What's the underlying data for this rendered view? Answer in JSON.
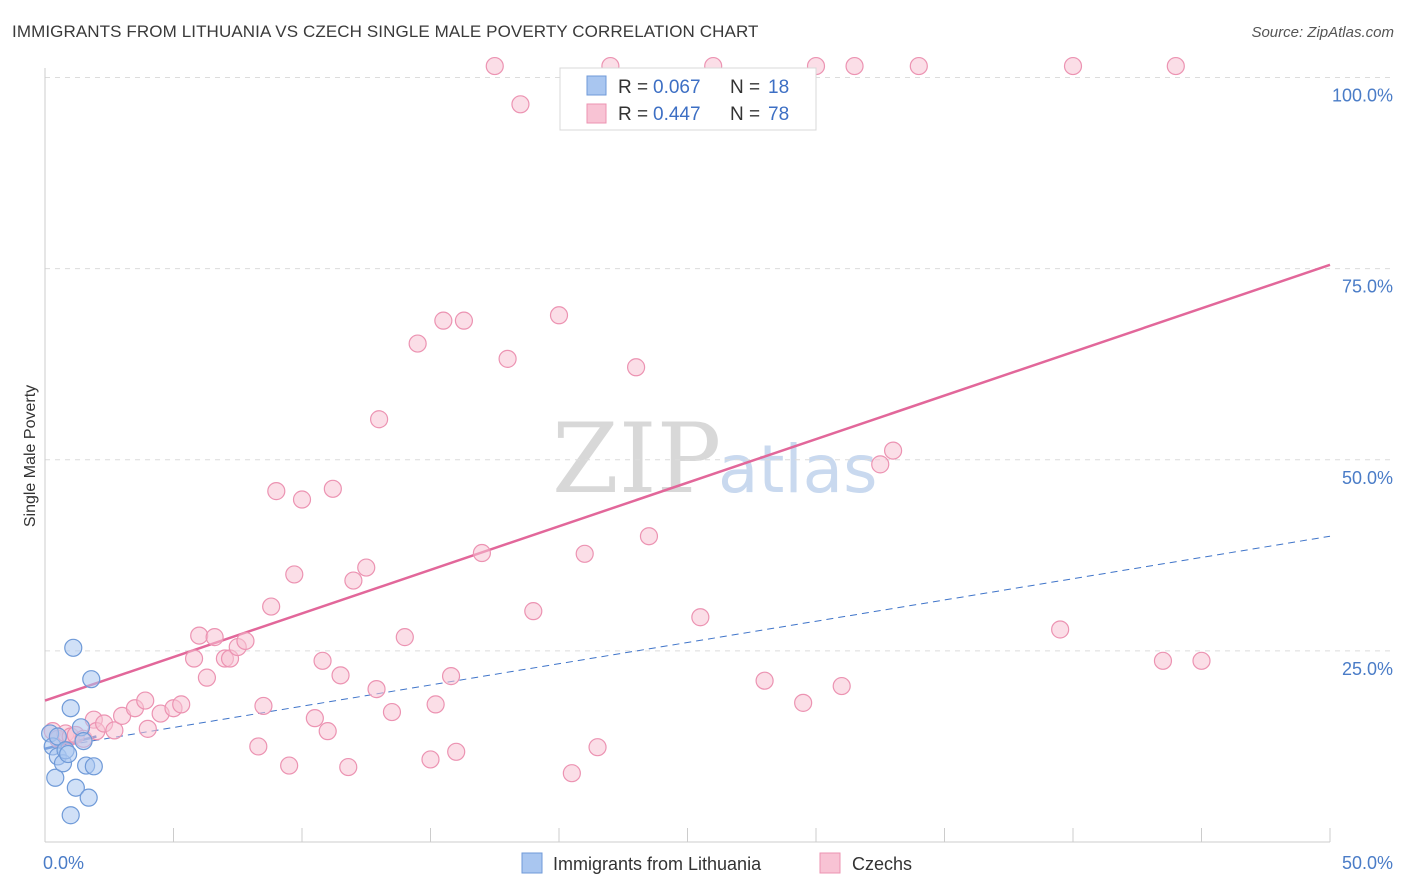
{
  "title": "IMMIGRANTS FROM LITHUANIA VS CZECH SINGLE MALE POVERTY CORRELATION CHART",
  "source": "Source: ZipAtlas.com",
  "watermark": {
    "zip": "ZIP",
    "atlas": "atlas"
  },
  "colors": {
    "lithuania_fill": "#a9c6f0",
    "lithuania_stroke": "#6f9ad8",
    "lithuania_line": "#3f74c9",
    "czech_fill": "#f8c3d4",
    "czech_stroke": "#ec93b2",
    "czech_line": "#e2679a",
    "grid": "#dcdcdc",
    "tick_text": "#4a7cc7"
  },
  "legend": {
    "series": [
      {
        "r_label": "R = ",
        "r_value": "0.067",
        "n_label": "N = ",
        "n_value": "18"
      },
      {
        "r_label": "R = ",
        "r_value": "0.447",
        "n_label": "N = ",
        "n_value": "78"
      }
    ]
  },
  "chart_data": {
    "type": "scatter",
    "title": "IMMIGRANTS FROM LITHUANIA VS CZECH SINGLE MALE POVERTY CORRELATION CHART",
    "xlabel": "",
    "ylabel": "Single Male Poverty",
    "xlim": [
      0,
      50
    ],
    "ylim": [
      0,
      100
    ],
    "x_tick_labels": [
      "0.0%",
      "50.0%"
    ],
    "y_ticks": [
      25,
      50,
      75,
      100
    ],
    "y_tick_labels": [
      "25.0%",
      "50.0%",
      "75.0%",
      "100.0%"
    ],
    "grid": true,
    "legend_position": "top-center",
    "series": [
      {
        "name": "Immigrants from Lithuania",
        "color": "#a9c6f0",
        "trend": {
          "x": [
            0,
            50
          ],
          "y": [
            12.2,
            40.0
          ],
          "style": "dashed"
        },
        "trend_solid": {
          "x": [
            0,
            2
          ],
          "y": [
            12.2,
            13.8
          ]
        },
        "points": [
          [
            0.2,
            14.2
          ],
          [
            0.3,
            12.5
          ],
          [
            0.4,
            8.4
          ],
          [
            0.5,
            11.2
          ],
          [
            0.5,
            13.8
          ],
          [
            0.7,
            10.3
          ],
          [
            0.8,
            12.0
          ],
          [
            0.9,
            11.5
          ],
          [
            1.0,
            3.5
          ],
          [
            1.0,
            17.5
          ],
          [
            1.1,
            25.4
          ],
          [
            1.2,
            7.1
          ],
          [
            1.4,
            15.0
          ],
          [
            1.5,
            13.2
          ],
          [
            1.6,
            10.0
          ],
          [
            1.7,
            5.8
          ],
          [
            1.8,
            21.3
          ],
          [
            1.9,
            9.9
          ]
        ]
      },
      {
        "name": "Czechs",
        "color": "#f8c3d4",
        "trend": {
          "x": [
            0,
            50
          ],
          "y": [
            18.5,
            75.5
          ],
          "style": "solid"
        },
        "points": [
          [
            0.3,
            14.5
          ],
          [
            0.5,
            13.5
          ],
          [
            0.8,
            14.2
          ],
          [
            1.0,
            13.8
          ],
          [
            1.2,
            14.0
          ],
          [
            1.5,
            13.5
          ],
          [
            1.9,
            16.0
          ],
          [
            2.0,
            14.5
          ],
          [
            2.3,
            15.5
          ],
          [
            2.7,
            14.6
          ],
          [
            3.0,
            16.5
          ],
          [
            3.5,
            17.5
          ],
          [
            3.9,
            18.5
          ],
          [
            4.0,
            14.8
          ],
          [
            4.5,
            16.8
          ],
          [
            5.0,
            17.5
          ],
          [
            5.3,
            18.0
          ],
          [
            5.8,
            24.0
          ],
          [
            6.0,
            27.0
          ],
          [
            6.3,
            21.5
          ],
          [
            6.6,
            26.8
          ],
          [
            7.0,
            24.0
          ],
          [
            7.2,
            24.0
          ],
          [
            7.5,
            25.5
          ],
          [
            7.8,
            26.3
          ],
          [
            8.3,
            12.5
          ],
          [
            8.5,
            17.8
          ],
          [
            8.8,
            30.8
          ],
          [
            9.0,
            45.9
          ],
          [
            9.5,
            10.0
          ],
          [
            9.7,
            35.0
          ],
          [
            10.0,
            44.8
          ],
          [
            10.5,
            16.2
          ],
          [
            10.8,
            23.7
          ],
          [
            11.0,
            14.5
          ],
          [
            11.2,
            46.2
          ],
          [
            11.5,
            21.8
          ],
          [
            11.8,
            9.8
          ],
          [
            12.0,
            34.2
          ],
          [
            12.5,
            35.9
          ],
          [
            12.9,
            20.0
          ],
          [
            13.0,
            55.3
          ],
          [
            13.5,
            17.0
          ],
          [
            14.0,
            26.8
          ],
          [
            14.5,
            65.2
          ],
          [
            15.0,
            10.8
          ],
          [
            15.2,
            18.0
          ],
          [
            15.5,
            68.2
          ],
          [
            15.8,
            21.7
          ],
          [
            16.0,
            11.8
          ],
          [
            16.3,
            68.2
          ],
          [
            17.0,
            37.8
          ],
          [
            17.5,
            101.5
          ],
          [
            18.0,
            63.2
          ],
          [
            18.5,
            96.5
          ],
          [
            19.0,
            30.2
          ],
          [
            20.0,
            68.9
          ],
          [
            20.5,
            9.0
          ],
          [
            21.0,
            37.7
          ],
          [
            21.5,
            12.4
          ],
          [
            22.0,
            101.5
          ],
          [
            23.0,
            62.1
          ],
          [
            23.5,
            40.0
          ],
          [
            25.5,
            29.4
          ],
          [
            26.0,
            101.5
          ],
          [
            28.0,
            21.1
          ],
          [
            29.5,
            18.2
          ],
          [
            30.0,
            101.5
          ],
          [
            31.0,
            20.4
          ],
          [
            31.5,
            101.5
          ],
          [
            32.5,
            49.4
          ],
          [
            33.0,
            51.2
          ],
          [
            34.0,
            101.5
          ],
          [
            39.5,
            27.8
          ],
          [
            40.0,
            101.5
          ],
          [
            43.5,
            23.7
          ],
          [
            44.0,
            101.5
          ],
          [
            45.0,
            23.7
          ]
        ]
      }
    ]
  }
}
